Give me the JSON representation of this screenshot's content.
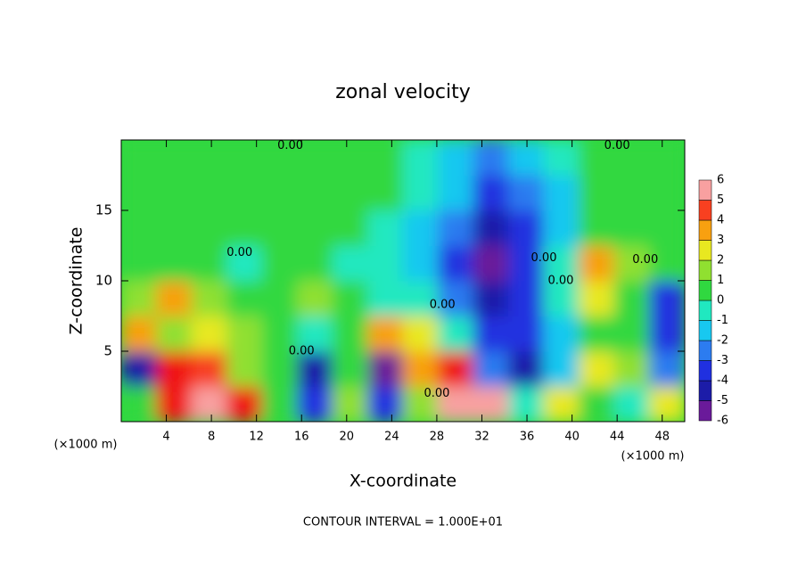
{
  "chart_data": {
    "type": "contour",
    "title": "zonal velocity",
    "x_label": "X-coordinate",
    "y_label": "Z-coordinate",
    "x_unit": "(×1000 m)",
    "y_unit": "(×1000 m)",
    "footer": "CONTOUR INTERVAL = 1.000E+01",
    "xlim": [
      0,
      50
    ],
    "ylim": [
      0,
      20
    ],
    "xticks": [
      4,
      8,
      12,
      16,
      20,
      24,
      28,
      32,
      36,
      40,
      44,
      48
    ],
    "yticks": [
      5,
      10,
      15
    ],
    "x": [
      1.5625,
      4.6875,
      7.8125,
      10.9375,
      14.0625,
      17.1875,
      20.3125,
      23.4375,
      26.5625,
      29.6875,
      32.8125,
      35.9375,
      39.0625,
      42.1875,
      45.3125,
      48.4375
    ],
    "y": [
      1.25,
      3.75,
      6.25,
      8.75,
      11.25,
      13.75,
      16.25,
      18.75
    ],
    "z": [
      [
        0,
        5,
        6,
        5,
        0,
        -4,
        1,
        -4,
        1,
        6,
        6,
        -1,
        2,
        0,
        -1,
        2
      ],
      [
        -5,
        5,
        4,
        1,
        0,
        -5,
        0,
        -6,
        3,
        5,
        -3,
        -5,
        -2,
        2,
        1,
        -3
      ],
      [
        3,
        1,
        2,
        1,
        0,
        -1,
        0.5,
        3,
        2,
        -1,
        -4,
        -4,
        -2,
        0,
        0,
        -4
      ],
      [
        1,
        3,
        1,
        0.5,
        0.5,
        1,
        0,
        -1,
        -1,
        -3,
        -5,
        -4,
        -1,
        2,
        0,
        -4
      ],
      [
        0.5,
        0.5,
        0,
        -0.5,
        0,
        0,
        -0.5,
        -1,
        -2,
        -4,
        -6,
        -4,
        -1,
        3,
        1,
        0
      ],
      [
        0.5,
        0.5,
        0.5,
        0,
        0,
        0,
        0,
        -1,
        -1.5,
        -3,
        -5,
        -4,
        -2,
        0.5,
        0.5,
        0
      ],
      [
        0.5,
        0.5,
        0.5,
        0.5,
        0.5,
        0.5,
        0.5,
        0,
        -1,
        -2,
        -4,
        -3,
        -2,
        0,
        0.5,
        0.5
      ],
      [
        0.5,
        0.5,
        0.5,
        0.5,
        0.5,
        0.5,
        0.5,
        0,
        -1,
        -2,
        -3,
        -2,
        -1,
        0.5,
        0.5,
        0.5
      ]
    ],
    "contour_labels": [
      {
        "text": "0.00",
        "x": 15,
        "y": 19.6
      },
      {
        "text": "0.00",
        "x": 44,
        "y": 19.6
      },
      {
        "text": "0.00",
        "x": 10.5,
        "y": 12
      },
      {
        "text": "0.00",
        "x": 46.5,
        "y": 11.5
      },
      {
        "text": "0.00",
        "x": 39,
        "y": 10
      },
      {
        "text": "0.00",
        "x": 28.5,
        "y": 8.3
      },
      {
        "text": "0.00",
        "x": 16,
        "y": 5
      },
      {
        "text": "0.00",
        "x": 28,
        "y": 2
      },
      {
        "text": "0.00",
        "x": 37.5,
        "y": 11.6
      }
    ],
    "colorbar": {
      "levels": [
        -6,
        -5,
        -4,
        -3,
        -2,
        -1,
        0,
        1,
        2,
        3,
        4,
        5,
        6
      ],
      "colors": [
        "#6a1a9a",
        "#1c1ca8",
        "#2030e0",
        "#2c7cf0",
        "#18c8f0",
        "#20e8c0",
        "#30d840",
        "#90e030",
        "#e8e820",
        "#f8a010",
        "#f84020",
        "#f01818",
        "#f8a0a0"
      ]
    }
  }
}
